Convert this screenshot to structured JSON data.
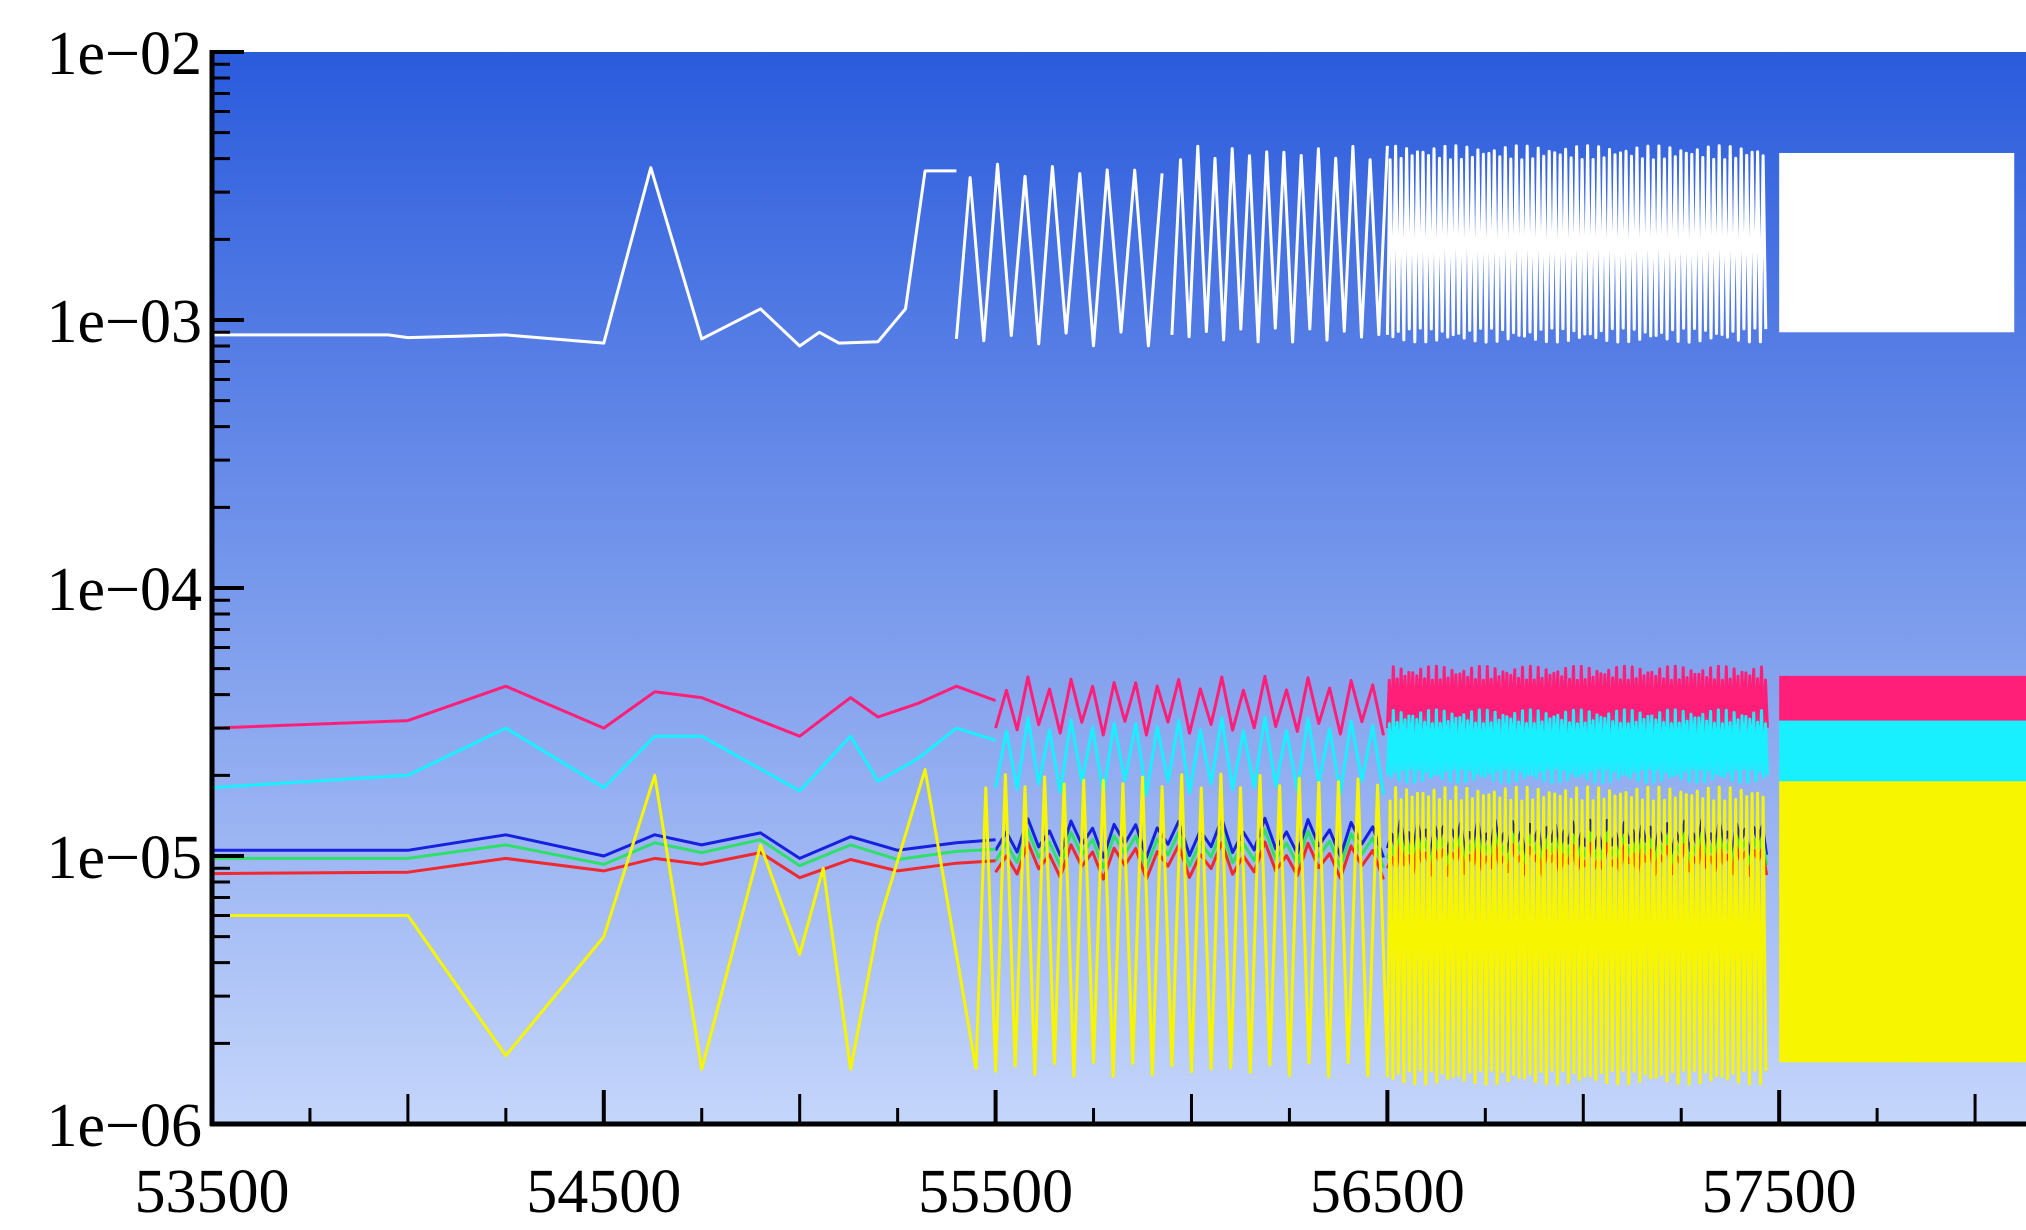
{
  "chart_data": {
    "type": "line",
    "title": "",
    "xlabel": "",
    "ylabel": "",
    "xlim": [
      53500,
      58130
    ],
    "ylim": [
      1e-06,
      0.01
    ],
    "yscale": "log",
    "grid": false,
    "legend": "none",
    "background": {
      "top": "#2a5bdc",
      "bottom": "#c5d6fb"
    },
    "x_tick_labels": [
      "53500",
      "54500",
      "55500",
      "56500",
      "57500"
    ],
    "x_tick_values": [
      53500,
      54500,
      55500,
      56500,
      57500
    ],
    "x_minor_step": 250,
    "y_tick_labels": [
      "1e−02",
      "1e−03",
      "1e−04",
      "1e−05",
      "1e−06"
    ],
    "y_tick_values": [
      0.01,
      0.001,
      0.0001,
      1e-05,
      1e-06
    ],
    "series": [
      {
        "color": "#ffffff",
        "segments": [
          {
            "x": [
              53500,
              53950,
              54000,
              54250,
              54500,
              54620,
              54750,
              54900,
              55000,
              55050,
              55100,
              55200,
              55270,
              55320,
              55400
            ],
            "y": [
              0.00088,
              0.00088,
              0.00086,
              0.00088,
              0.00082,
              0.0037,
              0.00085,
              0.0011,
              0.0008,
              0.0009,
              0.00082,
              0.00083,
              0.0011,
              0.0036,
              0.0036
            ]
          }
        ],
        "oscillations": [
          {
            "x_start": 55400,
            "x_end": 55950,
            "period": 70,
            "y_low": 0.00085,
            "y_high": 0.0036
          },
          {
            "x_start": 55950,
            "x_end": 56500,
            "period": 44,
            "y_low": 0.00088,
            "y_high": 0.0042
          },
          {
            "x_start": 56500,
            "x_end": 57470,
            "period": 14,
            "y_low": 0.00088,
            "y_high": 0.0042
          }
        ],
        "bands": [
          {
            "x_start": 57500,
            "x_end": 58100,
            "y_low": 0.0009,
            "y_high": 0.0042
          }
        ]
      },
      {
        "color": "#ff1f78",
        "segments": [
          {
            "x": [
              53500,
              54000,
              54250,
              54500,
              54630,
              54750,
              55000,
              55130,
              55200,
              55300,
              55400,
              55500
            ],
            "y": [
              3e-05,
              3.2e-05,
              4.3e-05,
              3e-05,
              4.1e-05,
              3.9e-05,
              2.8e-05,
              3.9e-05,
              3.3e-05,
              3.7e-05,
              4.3e-05,
              3.8e-05
            ]
          }
        ],
        "oscillations": [
          {
            "x_start": 55500,
            "x_end": 56500,
            "period": 55,
            "y_low": 3e-05,
            "y_high": 4.4e-05
          },
          {
            "x_start": 56500,
            "x_end": 57470,
            "period": 10,
            "y_low": 3e-05,
            "y_high": 4.8e-05
          }
        ],
        "bands": [
          {
            "x_start": 57500,
            "x_end": 58130,
            "y_low": 3.2e-05,
            "y_high": 4.7e-05
          }
        ]
      },
      {
        "color": "#19f0ff",
        "segments": [
          {
            "x": [
              53500,
              54000,
              54250,
              54500,
              54630,
              54750,
              55000,
              55130,
              55200,
              55300,
              55400,
              55500
            ],
            "y": [
              1.8e-05,
              2e-05,
              3e-05,
              1.8e-05,
              2.8e-05,
              2.8e-05,
              1.75e-05,
              2.8e-05,
              1.9e-05,
              2.3e-05,
              3e-05,
              2.7e-05
            ]
          }
        ],
        "oscillations": [
          {
            "x_start": 55500,
            "x_end": 56500,
            "period": 55,
            "y_low": 1.8e-05,
            "y_high": 3.1e-05
          },
          {
            "x_start": 56500,
            "x_end": 57470,
            "period": 10,
            "y_low": 2e-05,
            "y_high": 3.3e-05
          }
        ],
        "bands": [
          {
            "x_start": 57500,
            "x_end": 58130,
            "y_low": 1.8e-05,
            "y_high": 3.2e-05
          }
        ]
      },
      {
        "color": "#1520e0",
        "segments": [
          {
            "x": [
              53500,
              54000,
              54250,
              54500,
              54630,
              54750,
              54900,
              55000,
              55130,
              55250,
              55400,
              55500
            ],
            "y": [
              1.05e-05,
              1.05e-05,
              1.2e-05,
              1e-05,
              1.2e-05,
              1.1e-05,
              1.22e-05,
              9.8e-06,
              1.18e-05,
              1.05e-05,
              1.12e-05,
              1.15e-05
            ]
          }
        ],
        "oscillations": [
          {
            "x_start": 55500,
            "x_end": 56500,
            "period": 55,
            "y_low": 1.05e-05,
            "y_high": 1.3e-05
          },
          {
            "x_start": 56500,
            "x_end": 57470,
            "period": 22,
            "y_low": 1.07e-05,
            "y_high": 1.28e-05
          }
        ],
        "bands": []
      },
      {
        "color": "#2ee06a",
        "segments": [
          {
            "x": [
              53500,
              54000,
              54250,
              54500,
              54630,
              54750,
              54900,
              55000,
              55130,
              55250,
              55400,
              55500
            ],
            "y": [
              9.8e-06,
              9.8e-06,
              1.1e-05,
              9.3e-06,
              1.12e-05,
              1.03e-05,
              1.15e-05,
              9.2e-06,
              1.1e-05,
              9.7e-06,
              1.04e-05,
              1.06e-05
            ]
          }
        ],
        "oscillations": [
          {
            "x_start": 55500,
            "x_end": 56500,
            "period": 55,
            "y_low": 9.6e-06,
            "y_high": 1.18e-05
          },
          {
            "x_start": 56500,
            "x_end": 57470,
            "period": 22,
            "y_low": 9.8e-06,
            "y_high": 1.15e-05
          }
        ],
        "bands": []
      },
      {
        "color": "#f02830",
        "segments": [
          {
            "x": [
              53500,
              54000,
              54250,
              54500,
              54630,
              54750,
              54900,
              55000,
              55130,
              55250,
              55400,
              55500
            ],
            "y": [
              8.6e-06,
              8.7e-06,
              9.8e-06,
              8.8e-06,
              9.8e-06,
              9.3e-06,
              1.03e-05,
              8.3e-06,
              9.7e-06,
              8.8e-06,
              9.4e-06,
              9.6e-06
            ]
          }
        ],
        "oscillations": [
          {
            "x_start": 55500,
            "x_end": 56500,
            "period": 55,
            "y_low": 8.7e-06,
            "y_high": 1.06e-05
          },
          {
            "x_start": 56500,
            "x_end": 57470,
            "period": 22,
            "y_low": 9e-06,
            "y_high": 1.05e-05
          }
        ],
        "bands": []
      },
      {
        "color": "#f8f500",
        "segments": [
          {
            "x": [
              53500,
              54000,
              54250,
              54500,
              54630,
              54750,
              54900,
              55000,
              55060,
              55130,
              55200,
              55320,
              55450
            ],
            "y": [
              6e-06,
              6e-06,
              1.8e-06,
              5e-06,
              2e-05,
              1.6e-06,
              1.1e-05,
              4.3e-06,
              9e-06,
              1.6e-06,
              5.5e-06,
              2.1e-05,
              1.6e-06
            ]
          }
        ],
        "oscillations": [
          {
            "x_start": 55450,
            "x_end": 56500,
            "period": 50,
            "y_low": 1.6e-06,
            "y_high": 1.9e-05
          },
          {
            "x_start": 56500,
            "x_end": 57470,
            "period": 14,
            "y_low": 1.5e-06,
            "y_high": 1.7e-05
          }
        ],
        "bands": [
          {
            "x_start": 57500,
            "x_end": 58130,
            "y_low": 1.7e-06,
            "y_high": 1.9e-05
          }
        ]
      }
    ]
  }
}
